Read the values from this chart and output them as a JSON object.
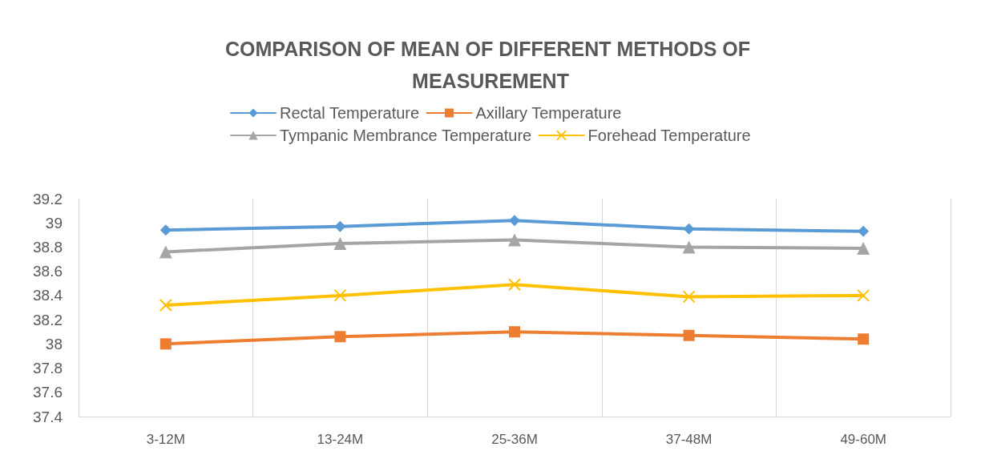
{
  "chart_data": {
    "type": "line",
    "title": "COMPARISON OF MEAN OF DIFFERENT METHODS OF MEASUREMENT",
    "categories": [
      "3-12M",
      "13-24M",
      "25-36M",
      "37-48M",
      "49-60M"
    ],
    "series": [
      {
        "name": "Rectal Temperature",
        "color": "#5b9bd5",
        "marker": "diamond",
        "values": [
          38.94,
          38.97,
          39.02,
          38.95,
          38.93
        ]
      },
      {
        "name": "Axillary Temperature",
        "color": "#ed7d31",
        "marker": "square",
        "values": [
          38.0,
          38.06,
          38.1,
          38.07,
          38.04
        ]
      },
      {
        "name": "Tympanic Membrance Temperature",
        "color": "#a5a5a5",
        "marker": "triangle",
        "values": [
          38.76,
          38.83,
          38.86,
          38.8,
          38.79
        ]
      },
      {
        "name": "Forehead Temperature",
        "color": "#ffc000",
        "marker": "cross",
        "values": [
          38.32,
          38.4,
          38.49,
          38.39,
          38.4
        ]
      }
    ],
    "ylim": [
      37.4,
      39.2
    ],
    "yticks": [
      37.4,
      37.6,
      37.8,
      38,
      38.2,
      38.4,
      38.6,
      38.8,
      39,
      39.2
    ],
    "grid": "x",
    "legend": "top"
  }
}
